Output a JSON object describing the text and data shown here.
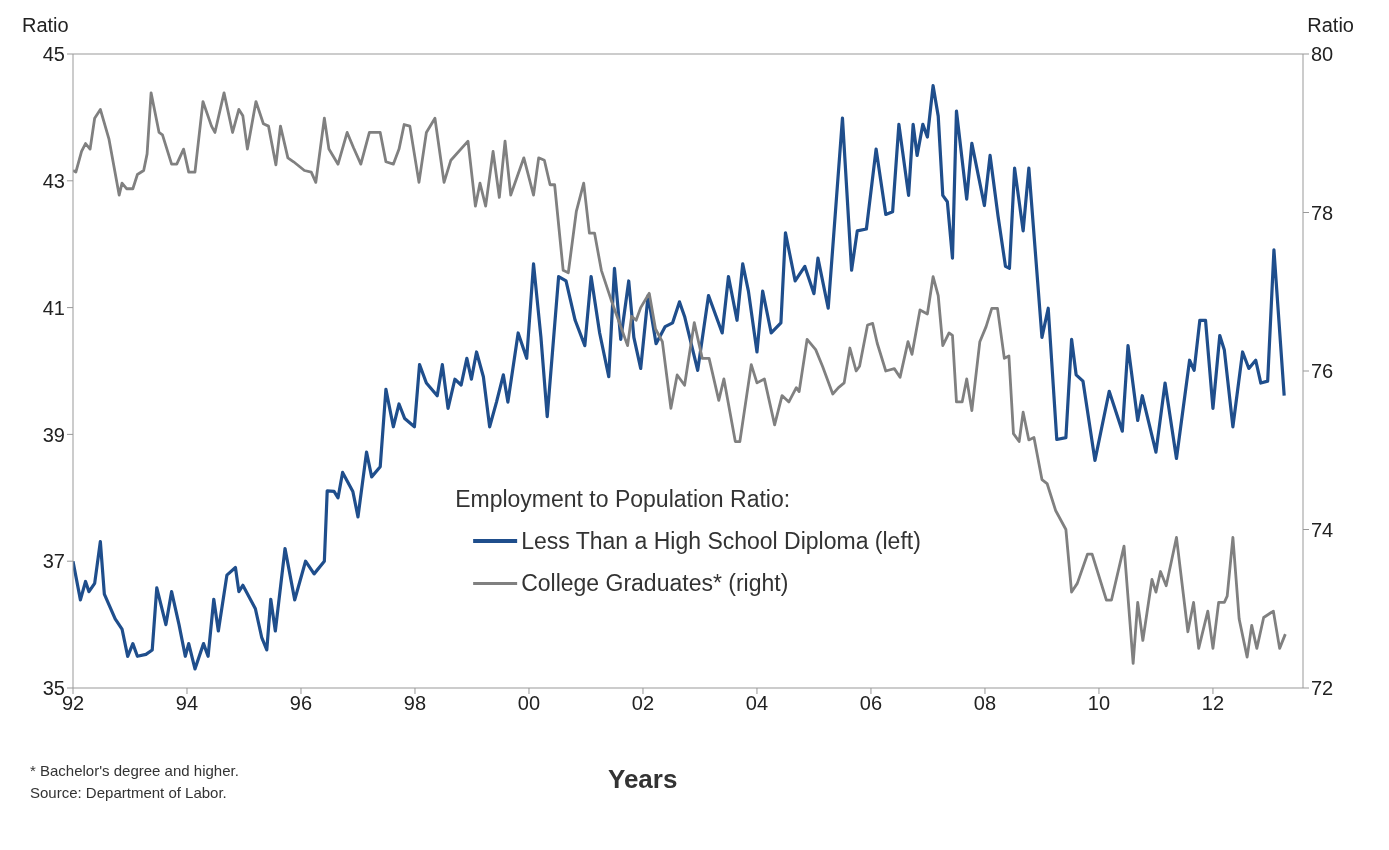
{
  "chart_data": {
    "type": "line",
    "xlabel": "Years",
    "ylabel": "Ratio",
    "y2label": "Ratio",
    "legend_title": "Employment to Population Ratio:",
    "legend": "bottom",
    "annotations": [
      "* Bachelor's degree and higher.",
      "Source: Department of Labor."
    ],
    "xlim": [
      1992,
      2013.58
    ],
    "xticks": [
      {
        "value": 1992,
        "label": "92"
      },
      {
        "value": 1994,
        "label": "94"
      },
      {
        "value": 1996,
        "label": "96"
      },
      {
        "value": 1998,
        "label": "98"
      },
      {
        "value": 2000,
        "label": "00"
      },
      {
        "value": 2002,
        "label": "02"
      },
      {
        "value": 2004,
        "label": "04"
      },
      {
        "value": 2006,
        "label": "06"
      },
      {
        "value": 2008,
        "label": "08"
      },
      {
        "value": 2010,
        "label": "10"
      },
      {
        "value": 2012,
        "label": "12"
      }
    ],
    "ylim": [
      35,
      45
    ],
    "yticks": [
      35,
      37,
      39,
      41,
      43,
      45
    ],
    "y2lim": [
      72,
      80
    ],
    "y2ticks": [
      72,
      74,
      76,
      78,
      80
    ],
    "series": [
      {
        "name": "Less Than a High School Diploma (left)",
        "color": "#1f4e8c",
        "x": [
          1992.0,
          1992.13,
          1992.22,
          1992.28,
          1992.38,
          1992.48,
          1992.55,
          1992.74,
          1992.86,
          1992.96,
          1993.05,
          1993.13,
          1993.28,
          1993.39,
          1993.47,
          1993.63,
          1993.73,
          1993.86,
          1993.97,
          1994.03,
          1994.14,
          1994.29,
          1994.37,
          1994.47,
          1994.55,
          1994.7,
          1994.85,
          1994.91,
          1994.98,
          1995.2,
          1995.31,
          1995.4,
          1995.47,
          1995.55,
          1995.72,
          1995.89,
          1996.08,
          1996.23,
          1996.41,
          1996.46,
          1996.58,
          1996.65,
          1996.73,
          1996.91,
          1997.0,
          1997.15,
          1997.24,
          1997.39,
          1997.49,
          1997.62,
          1997.72,
          1997.82,
          1997.99,
          1998.08,
          1998.2,
          1998.39,
          1998.48,
          1998.58,
          1998.7,
          1998.81,
          1998.91,
          1998.99,
          1999.08,
          1999.2,
          1999.31,
          1999.43,
          1999.55,
          1999.63,
          1999.81,
          1999.96,
          2000.08,
          2000.21,
          2000.32,
          2000.52,
          2000.65,
          2000.81,
          2000.98,
          2001.09,
          2001.24,
          2001.4,
          2001.5,
          2001.61,
          2001.75,
          2001.84,
          2001.96,
          2002.09,
          2002.23,
          2002.39,
          2002.52,
          2002.64,
          2002.73,
          2002.96,
          2003.15,
          2003.39,
          2003.5,
          2003.65,
          2003.75,
          2003.85,
          2004.0,
          2004.1,
          2004.25,
          2004.42,
          2004.5,
          2004.67,
          2004.84,
          2005.0,
          2005.07,
          2005.25,
          2005.5,
          2005.66,
          2005.76,
          2005.92,
          2006.09,
          2006.26,
          2006.38,
          2006.49,
          2006.66,
          2006.74,
          2006.81,
          2006.91,
          2006.99,
          2007.09,
          2007.18,
          2007.26,
          2007.34,
          2007.43,
          2007.5,
          2007.68,
          2007.77,
          2007.99,
          2008.09,
          2008.23,
          2008.36,
          2008.43,
          2008.52,
          2008.67,
          2008.77,
          2009.0,
          2009.11,
          2009.26,
          2009.42,
          2009.52,
          2009.6,
          2009.72,
          2009.93,
          2010.18,
          2010.41,
          2010.51,
          2010.68,
          2010.76,
          2011.0,
          2011.16,
          2011.36,
          2011.59,
          2011.67,
          2011.77,
          2011.87,
          2012.0,
          2012.12,
          2012.2,
          2012.35,
          2012.52,
          2012.63,
          2012.75,
          2012.84,
          2012.96,
          2013.07,
          2013.25
        ],
        "values": [
          37.0,
          36.39,
          36.68,
          36.52,
          36.65,
          37.31,
          36.48,
          36.09,
          35.93,
          35.5,
          35.7,
          35.5,
          35.53,
          35.6,
          36.58,
          36.0,
          36.52,
          36.0,
          35.5,
          35.7,
          35.3,
          35.7,
          35.5,
          36.4,
          35.9,
          36.78,
          36.9,
          36.52,
          36.62,
          36.25,
          35.8,
          35.6,
          36.4,
          35.9,
          37.2,
          36.39,
          37.0,
          36.8,
          37.0,
          38.11,
          38.1,
          38.0,
          38.4,
          38.1,
          37.7,
          38.72,
          38.33,
          38.49,
          39.71,
          39.12,
          39.48,
          39.25,
          39.12,
          40.1,
          39.81,
          39.61,
          40.1,
          39.41,
          39.87,
          39.78,
          40.2,
          39.87,
          40.3,
          39.91,
          39.12,
          39.51,
          39.94,
          39.51,
          40.6,
          40.2,
          41.69,
          40.53,
          39.28,
          41.49,
          41.42,
          40.8,
          40.4,
          41.49,
          40.6,
          39.91,
          41.62,
          40.5,
          41.42,
          40.53,
          40.04,
          41.19,
          40.43,
          40.7,
          40.76,
          41.09,
          40.86,
          40.01,
          41.19,
          40.6,
          41.49,
          40.8,
          41.69,
          41.26,
          40.3,
          41.26,
          40.6,
          40.76,
          42.18,
          41.42,
          41.65,
          41.22,
          41.78,
          40.99,
          43.99,
          41.59,
          42.21,
          42.24,
          43.5,
          42.47,
          42.51,
          43.89,
          42.77,
          43.89,
          43.4,
          43.89,
          43.69,
          44.5,
          44.02,
          42.77,
          42.67,
          41.78,
          44.1,
          42.71,
          43.59,
          42.61,
          43.4,
          42.44,
          41.65,
          41.62,
          43.2,
          42.21,
          43.2,
          40.53,
          40.99,
          38.92,
          38.95,
          40.5,
          39.94,
          39.84,
          38.59,
          39.68,
          39.05,
          40.4,
          39.22,
          39.61,
          38.72,
          39.81,
          38.62,
          40.17,
          40.01,
          40.8,
          40.8,
          39.41,
          40.56,
          40.33,
          39.12,
          40.3,
          40.04,
          40.17,
          39.81,
          39.84,
          41.91,
          39.61
        ]
      },
      {
        "name": "College Graduates* (right)",
        "color": "#808080",
        "axis": "y2",
        "x": [
          1992.0,
          1992.05,
          1992.15,
          1992.22,
          1992.3,
          1992.38,
          1992.48,
          1992.63,
          1992.81,
          1992.86,
          1992.94,
          1993.05,
          1993.13,
          1993.24,
          1993.3,
          1993.37,
          1993.51,
          1993.57,
          1993.73,
          1993.82,
          1993.94,
          1994.03,
          1994.14,
          1994.28,
          1994.43,
          1994.49,
          1994.65,
          1994.8,
          1994.91,
          1994.98,
          1995.06,
          1995.21,
          1995.34,
          1995.43,
          1995.56,
          1995.64,
          1995.77,
          1995.87,
          1996.06,
          1996.18,
          1996.26,
          1996.41,
          1996.49,
          1996.65,
          1996.81,
          1996.92,
          1997.05,
          1997.2,
          1997.39,
          1997.49,
          1997.62,
          1997.72,
          1997.81,
          1997.91,
          1998.07,
          1998.2,
          1998.35,
          1998.51,
          1998.63,
          1998.93,
          1999.06,
          1999.14,
          1999.24,
          1999.37,
          1999.48,
          1999.58,
          1999.68,
          1999.91,
          2000.08,
          2000.17,
          2000.27,
          2000.37,
          2000.45,
          2000.6,
          2000.69,
          2000.83,
          2000.96,
          2001.06,
          2001.15,
          2001.27,
          2001.44,
          2001.6,
          2001.73,
          2001.8,
          2001.88,
          2001.96,
          2002.11,
          2002.22,
          2002.34,
          2002.49,
          2002.6,
          2002.73,
          2002.9,
          2003.04,
          2003.16,
          2003.33,
          2003.42,
          2003.62,
          2003.7,
          2003.9,
          2004.0,
          2004.13,
          2004.31,
          2004.44,
          2004.56,
          2004.69,
          2004.74,
          2004.88,
          2005.03,
          2005.15,
          2005.33,
          2005.43,
          2005.53,
          2005.63,
          2005.74,
          2005.8,
          2005.94,
          2006.03,
          2006.11,
          2006.26,
          2006.41,
          2006.51,
          2006.65,
          2006.72,
          2006.86,
          2006.99,
          2007.09,
          2007.18,
          2007.26,
          2007.37,
          2007.43,
          2007.5,
          2007.6,
          2007.68,
          2007.77,
          2007.91,
          2008.02,
          2008.12,
          2008.22,
          2008.34,
          2008.42,
          2008.5,
          2008.6,
          2008.67,
          2008.77,
          2008.86,
          2009.0,
          2009.09,
          2009.24,
          2009.42,
          2009.52,
          2009.62,
          2009.8,
          2009.88,
          2010.13,
          2010.22,
          2010.44,
          2010.6,
          2010.68,
          2010.77,
          2010.93,
          2011.0,
          2011.08,
          2011.18,
          2011.36,
          2011.56,
          2011.66,
          2011.75,
          2011.91,
          2012.0,
          2012.1,
          2012.2,
          2012.25,
          2012.35,
          2012.46,
          2012.6,
          2012.68,
          2012.77,
          2012.89,
          2013.06,
          2013.17,
          2013.27
        ],
        "values": [
          78.53,
          78.51,
          78.77,
          78.87,
          78.8,
          79.19,
          79.3,
          78.93,
          78.22,
          78.37,
          78.3,
          78.3,
          78.48,
          78.53,
          78.74,
          79.51,
          79.01,
          78.98,
          78.61,
          78.61,
          78.8,
          78.51,
          78.51,
          79.4,
          79.09,
          79.01,
          79.51,
          79.01,
          79.3,
          79.22,
          78.8,
          79.4,
          79.12,
          79.09,
          78.6,
          79.09,
          78.69,
          78.64,
          78.53,
          78.51,
          78.38,
          79.19,
          78.8,
          78.61,
          79.01,
          78.82,
          78.61,
          79.01,
          79.01,
          78.64,
          78.61,
          78.8,
          79.11,
          79.09,
          78.38,
          79.01,
          79.19,
          78.38,
          78.66,
          78.9,
          78.08,
          78.37,
          78.08,
          78.77,
          78.19,
          78.9,
          78.22,
          78.69,
          78.22,
          78.69,
          78.66,
          78.35,
          78.35,
          77.27,
          77.24,
          78.01,
          78.37,
          77.74,
          77.74,
          77.27,
          76.9,
          76.58,
          76.32,
          76.69,
          76.64,
          76.8,
          76.98,
          76.53,
          76.37,
          75.53,
          75.95,
          75.82,
          76.61,
          76.16,
          76.16,
          75.63,
          75.9,
          75.11,
          75.11,
          76.08,
          75.85,
          75.9,
          75.32,
          75.69,
          75.61,
          75.79,
          75.74,
          76.4,
          76.27,
          76.06,
          75.71,
          75.79,
          75.85,
          76.29,
          76.0,
          76.06,
          76.58,
          76.6,
          76.35,
          76.0,
          76.03,
          75.92,
          76.37,
          76.21,
          76.77,
          76.72,
          77.19,
          76.95,
          76.32,
          76.48,
          76.45,
          75.61,
          75.61,
          75.9,
          75.5,
          76.37,
          76.56,
          76.79,
          76.79,
          76.16,
          76.19,
          75.21,
          75.11,
          75.48,
          75.13,
          75.16,
          74.63,
          74.58,
          74.24,
          74.0,
          73.21,
          73.32,
          73.69,
          73.69,
          73.11,
          73.11,
          73.79,
          72.31,
          73.08,
          72.6,
          73.37,
          73.21,
          73.47,
          73.29,
          73.9,
          72.71,
          73.08,
          72.5,
          72.97,
          72.5,
          73.08,
          73.08,
          73.16,
          73.9,
          72.87,
          72.39,
          72.79,
          72.5,
          72.89,
          72.97,
          72.5,
          72.68
        ]
      }
    ]
  }
}
